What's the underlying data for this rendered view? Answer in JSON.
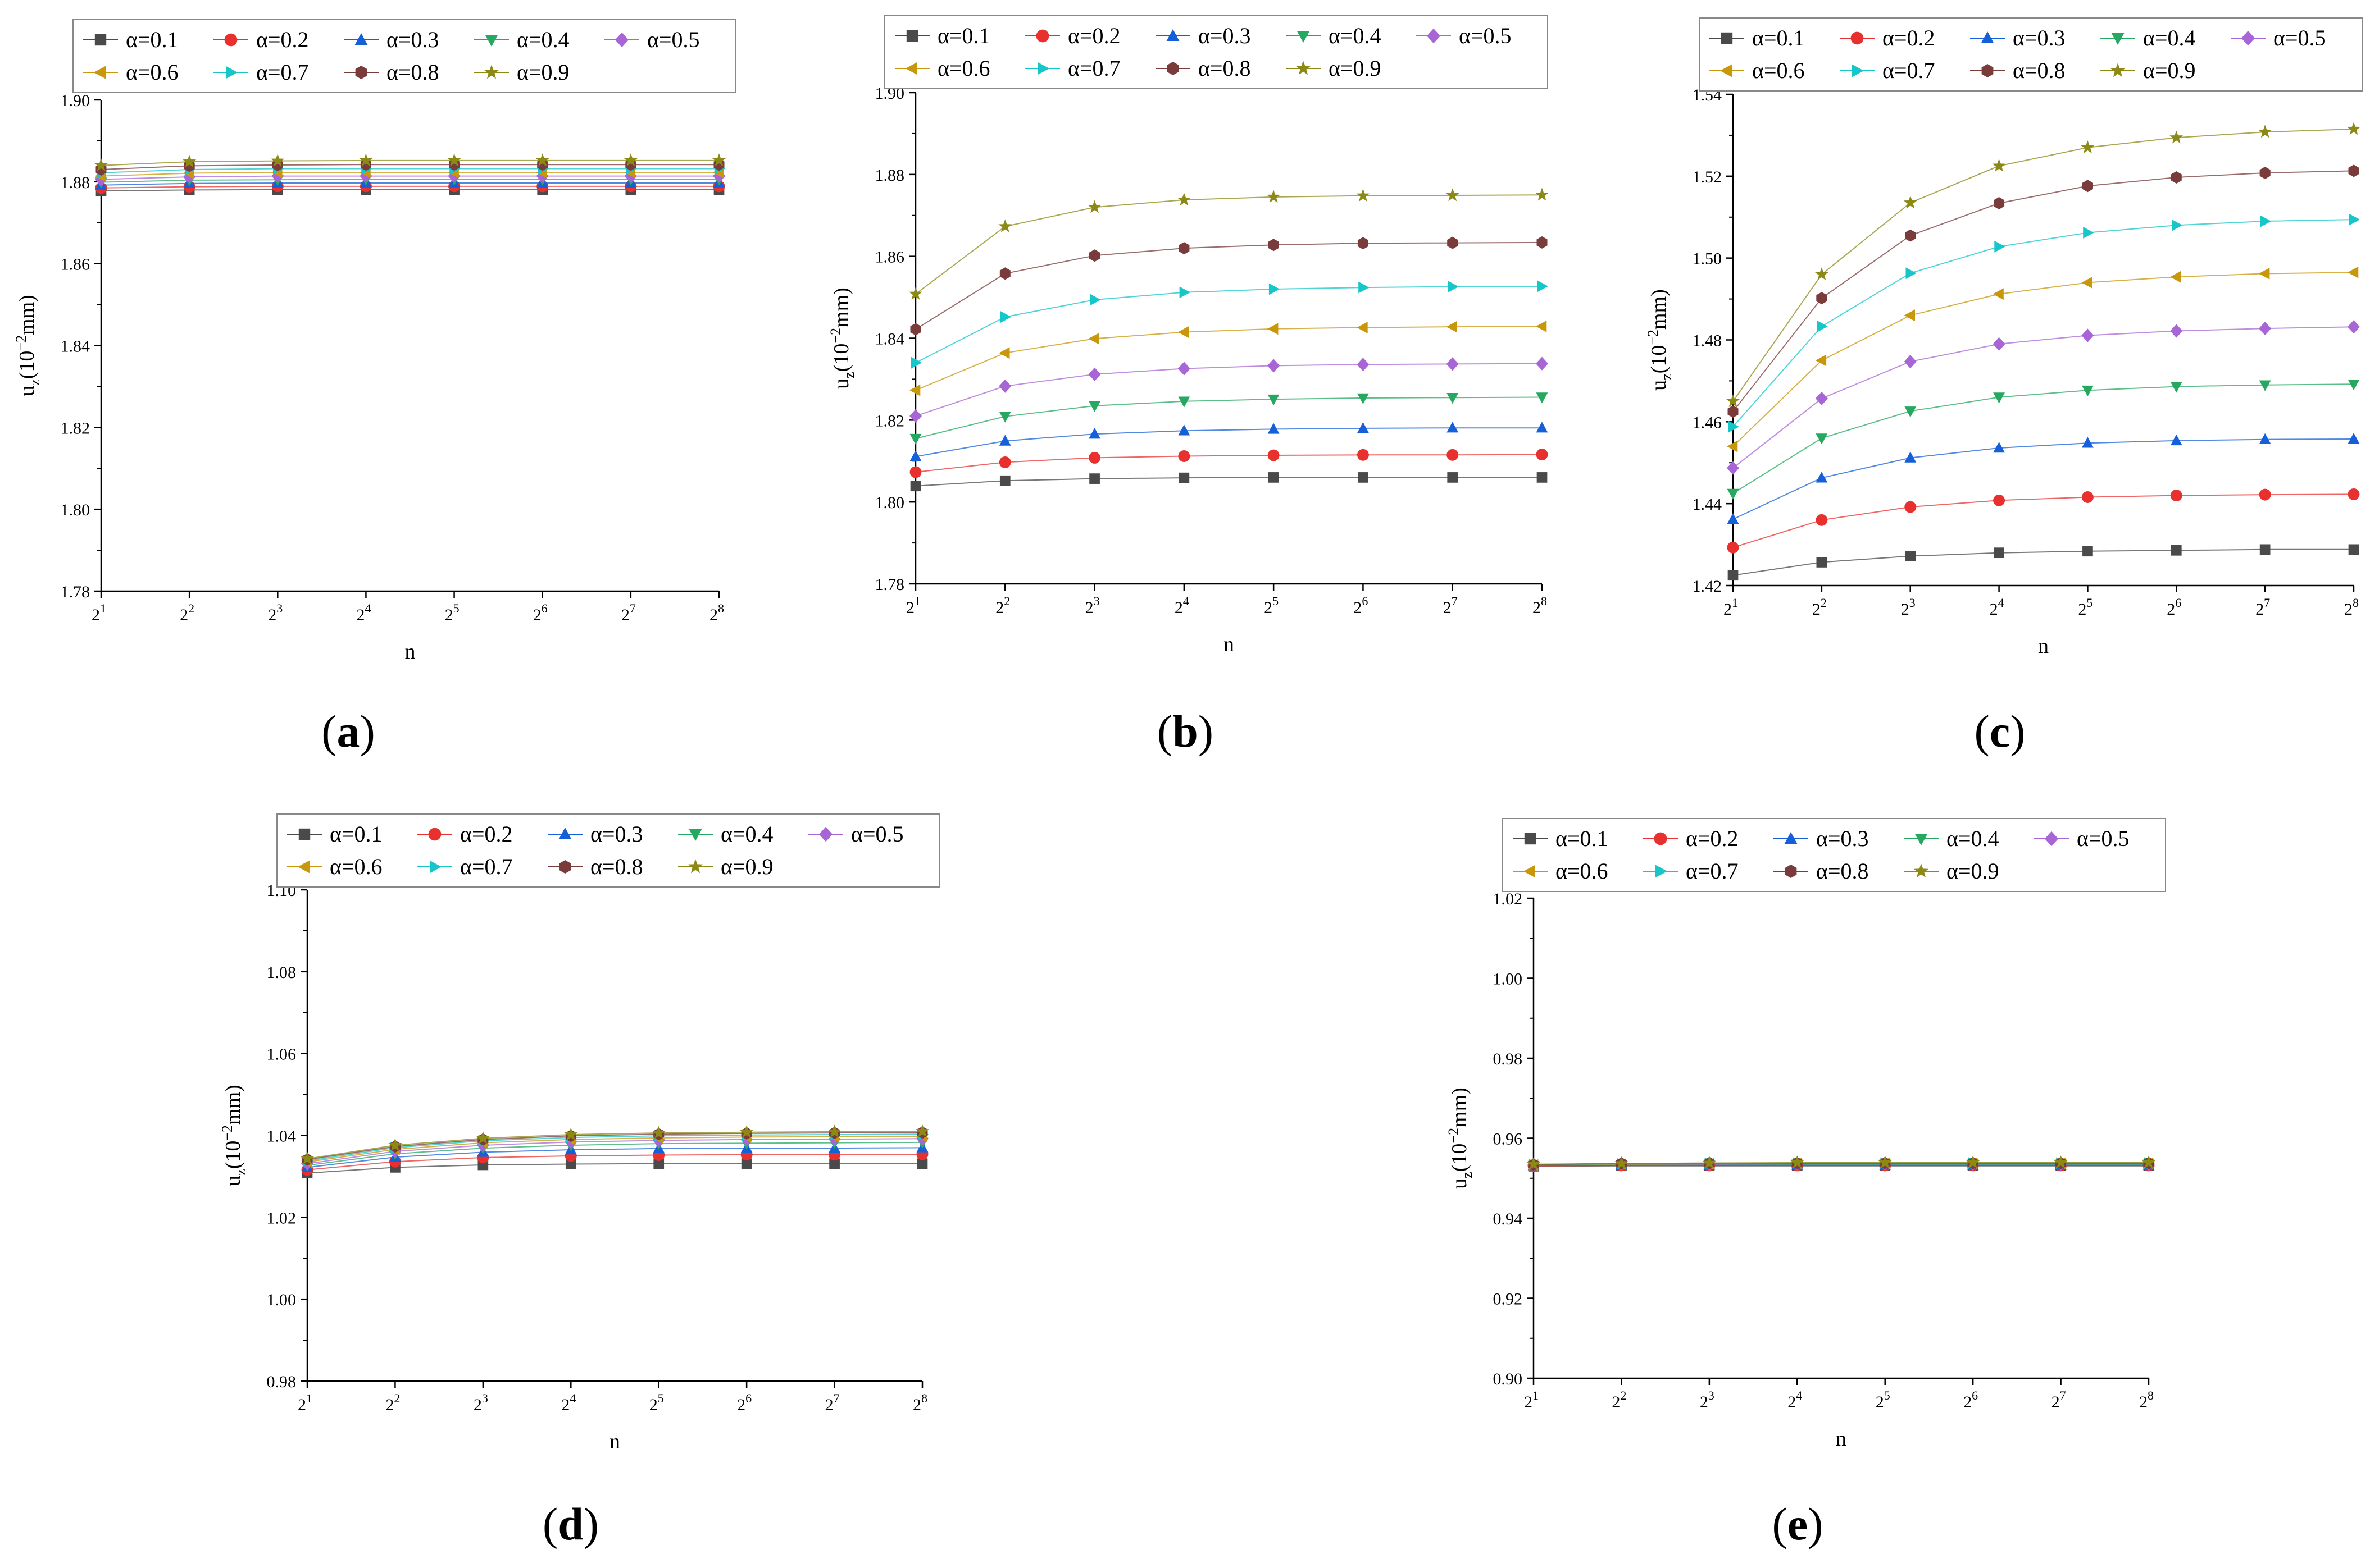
{
  "x_tick_base": "2",
  "x_tick_exponents": [
    "1",
    "2",
    "3",
    "4",
    "5",
    "6",
    "7",
    "8"
  ],
  "ylabel": {
    "main": "u",
    "sub": "z",
    "paren_open": "(10",
    "sup": "−2",
    "unit": "mm)"
  },
  "xlabel": "n",
  "series_style": [
    {
      "name": "α=0.1",
      "color": "#4a4a4a",
      "marker": "square"
    },
    {
      "name": "α=0.2",
      "color": "#e8312f",
      "marker": "circle"
    },
    {
      "name": "α=0.3",
      "color": "#1560d8",
      "marker": "triangle-up"
    },
    {
      "name": "α=0.4",
      "color": "#26a860",
      "marker": "triangle-down"
    },
    {
      "name": "α=0.5",
      "color": "#a865d6",
      "marker": "diamond"
    },
    {
      "name": "α=0.6",
      "color": "#c9970a",
      "marker": "triangle-left"
    },
    {
      "name": "α=0.7",
      "color": "#16c6c9",
      "marker": "triangle-right"
    },
    {
      "name": "α=0.8",
      "color": "#7a3b3b",
      "marker": "hexagon"
    },
    {
      "name": "α=0.9",
      "color": "#8c8a14",
      "marker": "star"
    }
  ],
  "chart_data": [
    {
      "panel": "a",
      "label": "a",
      "type": "line",
      "title": "",
      "xlabel": "n",
      "ylabel": "uz(10−2mm)",
      "x": [
        1,
        2,
        3,
        4,
        5,
        6,
        7,
        8
      ],
      "ylim": [
        1.78,
        1.9
      ],
      "yticks": [
        "1.78",
        "1.80",
        "1.82",
        "1.84",
        "1.86",
        "1.88",
        "1.90"
      ],
      "series": [
        {
          "name": "α=0.1",
          "values": [
            1.8778,
            1.878,
            1.8781,
            1.8781,
            1.8781,
            1.8781,
            1.8781,
            1.8781
          ]
        },
        {
          "name": "α=0.2",
          "values": [
            1.8785,
            1.8788,
            1.8789,
            1.8789,
            1.8789,
            1.8789,
            1.8789,
            1.8789
          ]
        },
        {
          "name": "α=0.3",
          "values": [
            1.8792,
            1.8796,
            1.8797,
            1.8797,
            1.8797,
            1.8797,
            1.8797,
            1.8797
          ]
        },
        {
          "name": "α=0.4",
          "values": [
            1.8799,
            1.8804,
            1.8805,
            1.8806,
            1.8806,
            1.8806,
            1.8806,
            1.8806
          ]
        },
        {
          "name": "α=0.5",
          "values": [
            1.8806,
            1.8812,
            1.8814,
            1.8814,
            1.8814,
            1.8814,
            1.8814,
            1.8814
          ]
        },
        {
          "name": "α=0.6",
          "values": [
            1.8814,
            1.8821,
            1.8823,
            1.8823,
            1.8823,
            1.8823,
            1.8823,
            1.8823
          ]
        },
        {
          "name": "α=0.7",
          "values": [
            1.8822,
            1.883,
            1.8832,
            1.8832,
            1.8832,
            1.8832,
            1.8832,
            1.8832
          ]
        },
        {
          "name": "α=0.8",
          "values": [
            1.883,
            1.8839,
            1.8841,
            1.8842,
            1.8842,
            1.8842,
            1.8842,
            1.8842
          ]
        },
        {
          "name": "α=0.9",
          "values": [
            1.884,
            1.8849,
            1.8851,
            1.8852,
            1.8852,
            1.8852,
            1.8852,
            1.8852
          ]
        }
      ]
    },
    {
      "panel": "b",
      "label": "b",
      "type": "line",
      "title": "",
      "xlabel": "n",
      "ylabel": "uz(10−2mm)",
      "x": [
        1,
        2,
        3,
        4,
        5,
        6,
        7,
        8
      ],
      "ylim": [
        1.78,
        1.9
      ],
      "yticks": [
        "1.78",
        "1.80",
        "1.82",
        "1.84",
        "1.86",
        "1.88",
        "1.90"
      ],
      "series": [
        {
          "name": "α=0.1",
          "values": [
            1.8039,
            1.8052,
            1.8057,
            1.8059,
            1.806,
            1.806,
            1.806,
            1.806
          ]
        },
        {
          "name": "α=0.2",
          "values": [
            1.8073,
            1.8097,
            1.8108,
            1.8112,
            1.8114,
            1.8115,
            1.8115,
            1.8116
          ]
        },
        {
          "name": "α=0.3",
          "values": [
            1.8111,
            1.8149,
            1.8166,
            1.8174,
            1.8178,
            1.818,
            1.8181,
            1.8181
          ]
        },
        {
          "name": "α=0.4",
          "values": [
            1.8155,
            1.8209,
            1.8235,
            1.8246,
            1.8251,
            1.8254,
            1.8255,
            1.8256
          ]
        },
        {
          "name": "α=0.5",
          "values": [
            1.821,
            1.8283,
            1.8312,
            1.8326,
            1.8333,
            1.8336,
            1.8337,
            1.8338
          ]
        },
        {
          "name": "α=0.6",
          "values": [
            1.8273,
            1.8364,
            1.8399,
            1.8415,
            1.8423,
            1.8426,
            1.8428,
            1.8429
          ]
        },
        {
          "name": "α=0.7",
          "values": [
            1.834,
            1.8452,
            1.8494,
            1.8512,
            1.852,
            1.8524,
            1.8526,
            1.8527
          ]
        },
        {
          "name": "α=0.8",
          "values": [
            1.8422,
            1.8558,
            1.8602,
            1.862,
            1.8628,
            1.8632,
            1.8633,
            1.8634
          ]
        },
        {
          "name": "α=0.9",
          "values": [
            1.8508,
            1.8673,
            1.872,
            1.8738,
            1.8745,
            1.8748,
            1.8749,
            1.875
          ]
        }
      ]
    },
    {
      "panel": "c",
      "label": "c",
      "type": "line",
      "title": "",
      "xlabel": "n",
      "ylabel": "uz(10−2mm)",
      "x": [
        1,
        2,
        3,
        4,
        5,
        6,
        7,
        8
      ],
      "ylim": [
        1.42,
        1.54
      ],
      "yticks": [
        "1.42",
        "1.44",
        "1.46",
        "1.48",
        "1.50",
        "1.52",
        "1.54"
      ],
      "series": [
        {
          "name": "α=0.1",
          "values": [
            1.4225,
            1.4257,
            1.4272,
            1.428,
            1.4284,
            1.4286,
            1.4288,
            1.4288
          ]
        },
        {
          "name": "α=0.2",
          "values": [
            1.4293,
            1.436,
            1.4392,
            1.4408,
            1.4416,
            1.442,
            1.4422,
            1.4423
          ]
        },
        {
          "name": "α=0.3",
          "values": [
            1.4362,
            1.4463,
            1.4512,
            1.4536,
            1.4548,
            1.4554,
            1.4557,
            1.4558
          ]
        },
        {
          "name": "α=0.4",
          "values": [
            1.4425,
            1.456,
            1.4626,
            1.466,
            1.4677,
            1.4686,
            1.469,
            1.4692
          ]
        },
        {
          "name": "α=0.5",
          "values": [
            1.4487,
            1.4657,
            1.4747,
            1.479,
            1.4811,
            1.4822,
            1.4828,
            1.4832
          ]
        },
        {
          "name": "α=0.6",
          "values": [
            1.454,
            1.475,
            1.486,
            1.4912,
            1.494,
            1.4954,
            1.4962,
            1.4965
          ]
        },
        {
          "name": "α=0.7",
          "values": [
            1.4588,
            1.4833,
            1.4963,
            1.5028,
            1.5062,
            1.508,
            1.509,
            1.5094
          ]
        },
        {
          "name": "α=0.8",
          "values": [
            1.4625,
            1.4902,
            1.5055,
            1.5134,
            1.5176,
            1.5197,
            1.5208,
            1.5213
          ]
        },
        {
          "name": "α=0.9",
          "values": [
            1.465,
            1.496,
            1.5135,
            1.5225,
            1.527,
            1.5294,
            1.5308,
            1.5315
          ]
        }
      ]
    },
    {
      "panel": "d",
      "label": "d",
      "type": "line",
      "title": "",
      "xlabel": "n",
      "ylabel": "uz(10−2mm)",
      "x": [
        1,
        2,
        3,
        4,
        5,
        6,
        7,
        8
      ],
      "ylim": [
        0.98,
        1.1
      ],
      "yticks": [
        "0.98",
        "1.00",
        "1.02",
        "1.04",
        "1.06",
        "1.08",
        "1.10"
      ],
      "series": [
        {
          "name": "α=0.1",
          "values": [
            1.0308,
            1.0322,
            1.0328,
            1.033,
            1.0331,
            1.0331,
            1.0331,
            1.0331
          ]
        },
        {
          "name": "α=0.2",
          "values": [
            1.0316,
            1.0336,
            1.0346,
            1.035,
            1.0352,
            1.0353,
            1.0353,
            1.0354
          ]
        },
        {
          "name": "α=0.3",
          "values": [
            1.0322,
            1.0347,
            1.0359,
            1.0365,
            1.0368,
            1.0369,
            1.0369,
            1.037
          ]
        },
        {
          "name": "α=0.4",
          "values": [
            1.0327,
            1.0355,
            1.0369,
            1.0376,
            1.038,
            1.0381,
            1.0382,
            1.0383
          ]
        },
        {
          "name": "α=0.5",
          "values": [
            1.0331,
            1.0361,
            1.0376,
            1.0384,
            1.0388,
            1.039,
            1.0391,
            1.0392
          ]
        },
        {
          "name": "α=0.6",
          "values": [
            1.0335,
            1.0366,
            1.0382,
            1.039,
            1.0394,
            1.0396,
            1.0397,
            1.0398
          ]
        },
        {
          "name": "α=0.7",
          "values": [
            1.0338,
            1.037,
            1.0387,
            1.0395,
            1.0399,
            1.0401,
            1.0402,
            1.0403
          ]
        },
        {
          "name": "α=0.8",
          "values": [
            1.0341,
            1.0373,
            1.039,
            1.0399,
            1.0403,
            1.0405,
            1.0406,
            1.0407
          ]
        },
        {
          "name": "α=0.9",
          "values": [
            1.0343,
            1.0376,
            1.0393,
            1.0402,
            1.0406,
            1.0408,
            1.0409,
            1.041
          ]
        }
      ]
    },
    {
      "panel": "e",
      "label": "e",
      "type": "line",
      "title": "",
      "xlabel": "n",
      "ylabel": "uz(10−2mm)",
      "x": [
        1,
        2,
        3,
        4,
        5,
        6,
        7,
        8
      ],
      "ylim": [
        0.9,
        1.02
      ],
      "yticks": [
        "0.90",
        "0.92",
        "0.94",
        "0.96",
        "0.98",
        "1.00",
        "1.02"
      ],
      "series": [
        {
          "name": "α=0.1",
          "values": [
            0.953,
            0.9531,
            0.9531,
            0.9531,
            0.9531,
            0.9531,
            0.9531,
            0.9531
          ]
        },
        {
          "name": "α=0.2",
          "values": [
            0.9531,
            0.9532,
            0.9532,
            0.9532,
            0.9532,
            0.9532,
            0.9532,
            0.9532
          ]
        },
        {
          "name": "α=0.3",
          "values": [
            0.9532,
            0.9533,
            0.9533,
            0.9533,
            0.9533,
            0.9533,
            0.9533,
            0.9533
          ]
        },
        {
          "name": "α=0.4",
          "values": [
            0.9532,
            0.9534,
            0.9534,
            0.9535,
            0.9535,
            0.9535,
            0.9535,
            0.9535
          ]
        },
        {
          "name": "α=0.5",
          "values": [
            0.9533,
            0.9535,
            0.9535,
            0.9536,
            0.9536,
            0.9536,
            0.9536,
            0.9536
          ]
        },
        {
          "name": "α=0.6",
          "values": [
            0.9533,
            0.9535,
            0.9536,
            0.9537,
            0.9537,
            0.9537,
            0.9537,
            0.9537
          ]
        },
        {
          "name": "α=0.7",
          "values": [
            0.9534,
            0.9536,
            0.9537,
            0.9538,
            0.9538,
            0.9538,
            0.9538,
            0.9538
          ]
        },
        {
          "name": "α=0.8",
          "values": [
            0.9534,
            0.9537,
            0.9538,
            0.9538,
            0.9538,
            0.9538,
            0.9538,
            0.9538
          ]
        },
        {
          "name": "α=0.9",
          "values": [
            0.9535,
            0.9537,
            0.9538,
            0.9539,
            0.9539,
            0.9539,
            0.9539,
            0.9539
          ]
        }
      ]
    }
  ]
}
